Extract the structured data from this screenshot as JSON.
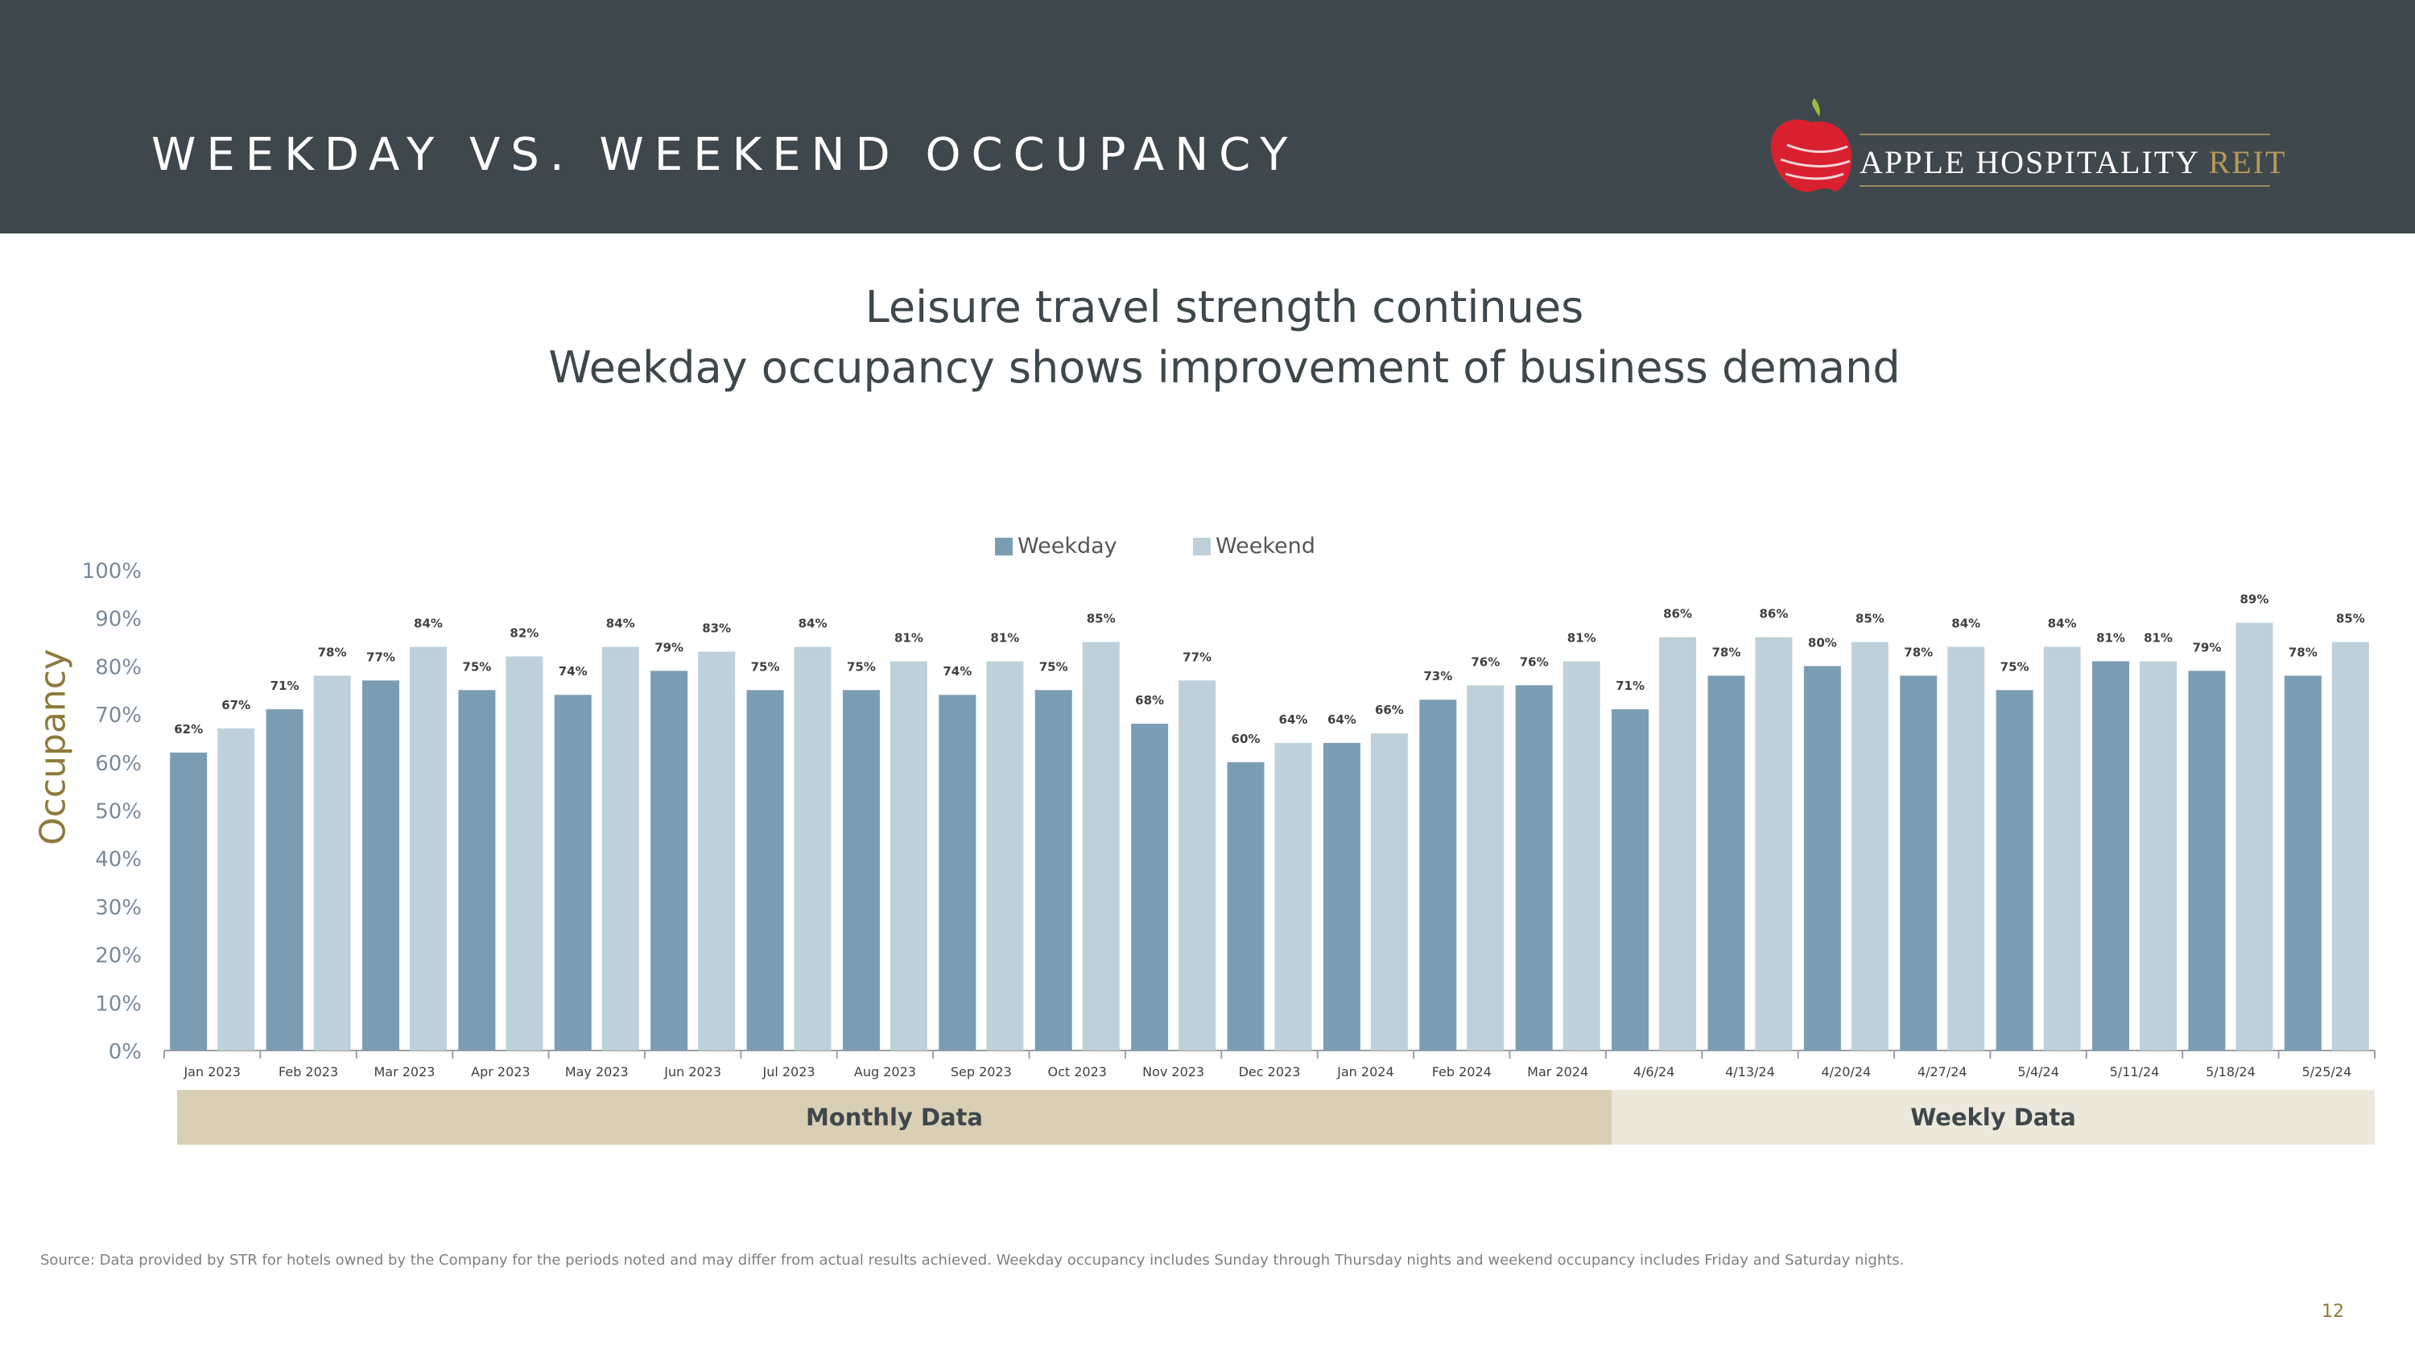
{
  "header": {
    "title": "WEEKDAY VS. WEEKEND OCCUPANCY",
    "logo_main": "APPLE HOSPITALITY ",
    "logo_accent": "REIT",
    "background_color": "#3e474b"
  },
  "headline": {
    "line1": "Leisure travel strength continues",
    "line2": "Weekday occupancy shows improvement of business demand"
  },
  "chart_data": {
    "type": "bar",
    "categories": [
      "Jan 2023",
      "Feb 2023",
      "Mar 2023",
      "Apr 2023",
      "May 2023",
      "Jun 2023",
      "Jul 2023",
      "Aug 2023",
      "Sep 2023",
      "Oct 2023",
      "Nov 2023",
      "Dec 2023",
      "Jan 2024",
      "Feb 2024",
      "Mar 2024",
      "4/6/24",
      "4/13/24",
      "4/20/24",
      "4/27/24",
      "5/4/24",
      "5/11/24",
      "5/18/24",
      "5/25/24"
    ],
    "series": [
      {
        "name": "Weekday",
        "color": "#7b9db3",
        "values": [
          62,
          71,
          77,
          75,
          74,
          79,
          75,
          75,
          74,
          75,
          68,
          60,
          64,
          73,
          76,
          71,
          78,
          80,
          78,
          75,
          81,
          79,
          78
        ],
        "labels": [
          "62%",
          "71%",
          "77%",
          "75%",
          "74%",
          "79%",
          "75%",
          "75%",
          "74%",
          "75%",
          "68%",
          "60%",
          "64%",
          "73%",
          "76%",
          "71%",
          "78%",
          "80%",
          "78%",
          "75%",
          "81%",
          "79%",
          "78%"
        ]
      },
      {
        "name": "Weekend",
        "color": "#bfd0da",
        "values": [
          67,
          78,
          84,
          82,
          84,
          83,
          84,
          81,
          81,
          85,
          77,
          64,
          66,
          76,
          81,
          86,
          86,
          85,
          84,
          84,
          81,
          89,
          85
        ],
        "labels": [
          "67%",
          "78%",
          "84%",
          "82%",
          "84%",
          "83%",
          "84%",
          "81%",
          "81%",
          "85%",
          "77%",
          "64%",
          "66%",
          "76%",
          "81%",
          "86%",
          "86%",
          "85%",
          "84%",
          "84%",
          "81%",
          "89%",
          "85%"
        ]
      }
    ],
    "ylabel": "Occupancy",
    "ylim": [
      0,
      100
    ],
    "yticks": [
      "0%",
      "10%",
      "20%",
      "30%",
      "40%",
      "50%",
      "60%",
      "70%",
      "80%",
      "90%",
      "100%"
    ],
    "grid": false,
    "legend_position": "top"
  },
  "bands": {
    "monthly": "Monthly Data",
    "weekly": "Weekly Data"
  },
  "footer": {
    "source": "Source:  Data provided by STR for hotels owned by the Company for the periods noted and may differ from actual results achieved. Weekday occupancy includes Sunday through Thursday nights and weekend occupancy includes Friday and Saturday nights.",
    "page_number": "12"
  }
}
